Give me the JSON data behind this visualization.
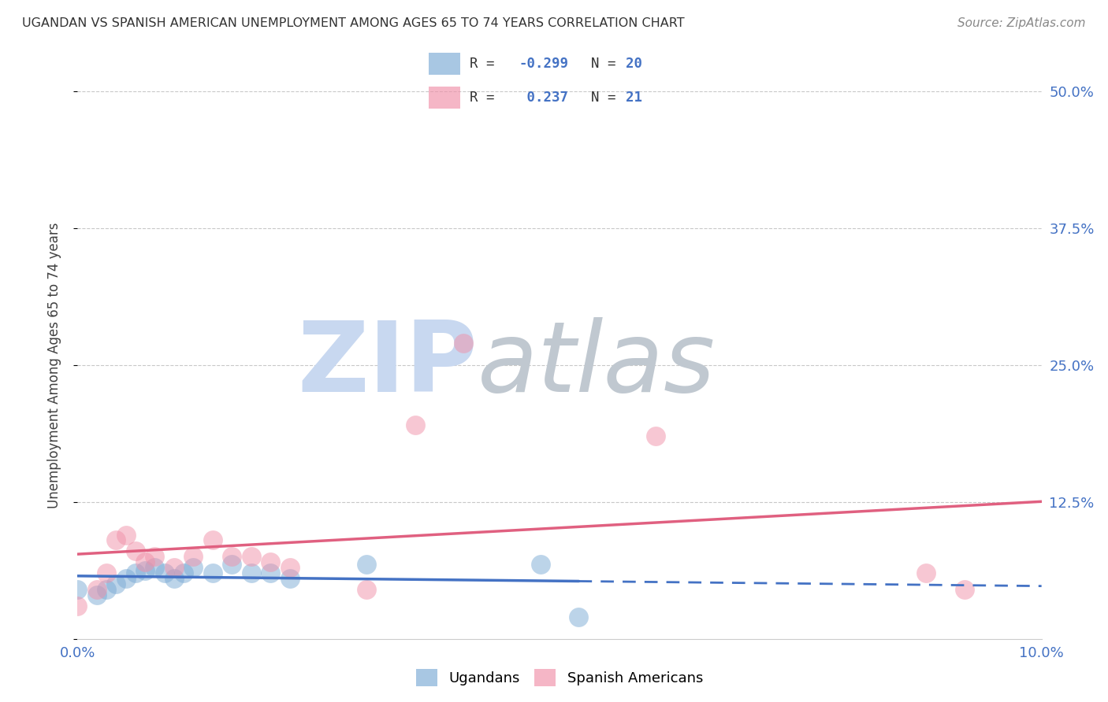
{
  "title": "UGANDAN VS SPANISH AMERICAN UNEMPLOYMENT AMONG AGES 65 TO 74 YEARS CORRELATION CHART",
  "source": "Source: ZipAtlas.com",
  "ylabel": "Unemployment Among Ages 65 to 74 years",
  "watermark_zip": "ZIP",
  "watermark_atlas": "atlas",
  "xlim": [
    0.0,
    0.1
  ],
  "ylim": [
    0.0,
    0.5
  ],
  "yticks": [
    0.0,
    0.125,
    0.25,
    0.375,
    0.5
  ],
  "ytick_labels": [
    "",
    "12.5%",
    "25.0%",
    "37.5%",
    "50.0%"
  ],
  "r_ugandan": "-0.299",
  "n_ugandan": "20",
  "r_spanish": "0.237",
  "n_spanish": "21",
  "ugandan_x": [
    0.0,
    0.002,
    0.003,
    0.004,
    0.005,
    0.006,
    0.007,
    0.008,
    0.009,
    0.01,
    0.011,
    0.012,
    0.014,
    0.016,
    0.018,
    0.02,
    0.022,
    0.03,
    0.048,
    0.052
  ],
  "ugandan_y": [
    0.045,
    0.04,
    0.045,
    0.05,
    0.055,
    0.06,
    0.062,
    0.065,
    0.06,
    0.055,
    0.06,
    0.065,
    0.06,
    0.068,
    0.06,
    0.06,
    0.055,
    0.068,
    0.068,
    0.02
  ],
  "spanish_x": [
    0.0,
    0.002,
    0.003,
    0.004,
    0.005,
    0.006,
    0.007,
    0.008,
    0.01,
    0.012,
    0.014,
    0.016,
    0.018,
    0.02,
    0.022,
    0.03,
    0.035,
    0.04,
    0.06,
    0.088,
    0.092
  ],
  "spanish_y": [
    0.03,
    0.045,
    0.06,
    0.09,
    0.095,
    0.08,
    0.07,
    0.075,
    0.065,
    0.075,
    0.09,
    0.075,
    0.075,
    0.07,
    0.065,
    0.045,
    0.195,
    0.27,
    0.185,
    0.06,
    0.045
  ],
  "ugandan_color": "#7aaad4",
  "ugandan_line_color": "#4472c4",
  "ugandan_line_solid_end": 0.052,
  "spanish_color": "#f090a8",
  "spanish_line_color": "#e06080",
  "background_color": "#ffffff",
  "grid_color": "#c8c8c8",
  "title_color": "#333333",
  "source_color": "#888888",
  "watermark_color_zip": "#c8d8f0",
  "watermark_color_atlas": "#c0c8d0"
}
